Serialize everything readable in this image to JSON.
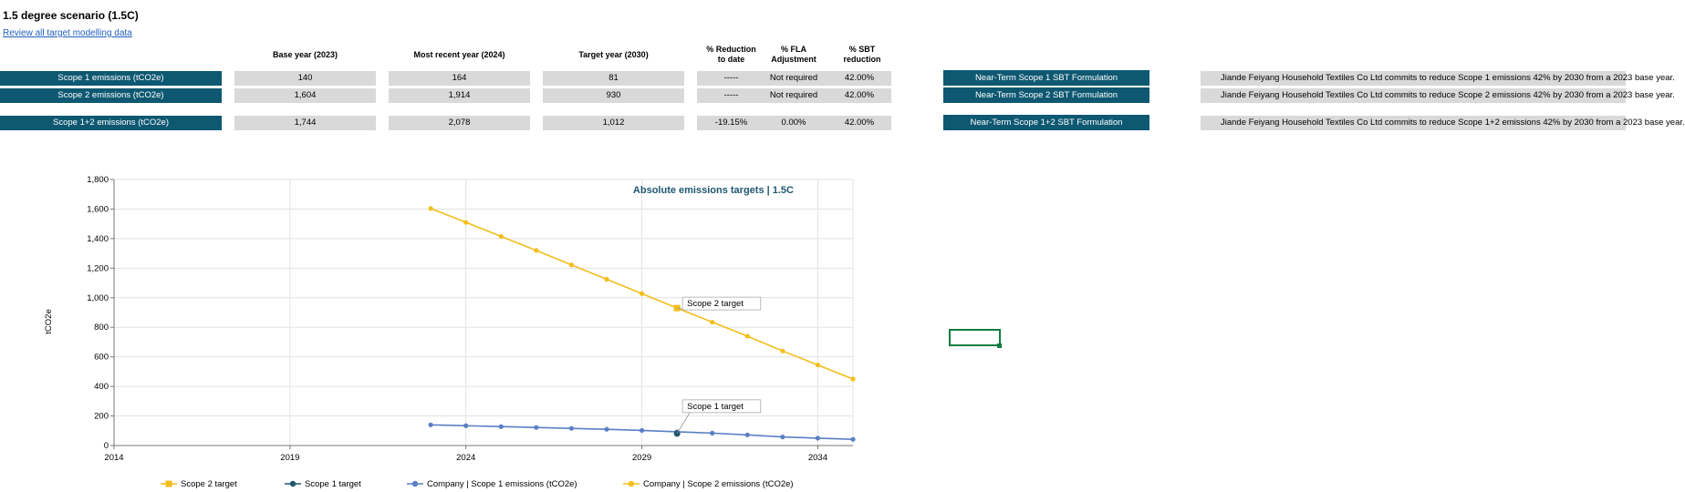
{
  "page": {
    "title": "1.5 degree scenario (1.5C)",
    "review_link": "Review all target modelling data"
  },
  "table": {
    "headers": {
      "base": "Base year (2023)",
      "recent": "Most recent year (2024)",
      "target": "Target year (2030)",
      "reduction_l1": "% Reduction",
      "reduction_l2": "to date",
      "fla_l1": "% FLA",
      "fla_l2": "Adjustment",
      "sbt_l1": "% SBT",
      "sbt_l2": "reduction"
    },
    "rows": [
      {
        "label": "Scope 1 emissions (tCO2e)",
        "base": "140",
        "recent": "164",
        "target": "81",
        "reduction": "-----",
        "fla": "Not required",
        "sbt": "42.00%",
        "formula": "Near-Term Scope 1 SBT Formulation",
        "statement": "Jiande Feiyang Household Textiles Co Ltd commits to reduce Scope 1 emissions 42% by  2030 from a 2023 base year."
      },
      {
        "label": "Scope 2 emissions (tCO2e)",
        "base": "1,604",
        "recent": "1,914",
        "target": "930",
        "reduction": "-----",
        "fla": "Not required",
        "sbt": "42.00%",
        "formula": "Near-Term Scope 2 SBT Formulation",
        "statement": "Jiande Feiyang Household Textiles Co Ltd commits to reduce Scope 2 emissions 42% by  2030 from a 2023 base year."
      },
      {
        "label": "Scope 1+2 emissions (tCO2e)",
        "base": "1,744",
        "recent": "2,078",
        "target": "1,012",
        "reduction": "-19.15%",
        "fla": "0.00%",
        "sbt": "42.00%",
        "formula": "Near-Term Scope 1+2 SBT Formulation",
        "statement": "Jiande Feiyang Household Textiles Co Ltd commits to reduce Scope 1+2 emissions 42% by  2030 from a 2023 base year."
      }
    ]
  },
  "chart_data": {
    "type": "line",
    "title": "Absolute emissions targets | 1.5C",
    "ylabel": "tCO2e",
    "xlabel": "",
    "xlim": [
      2014,
      2035
    ],
    "ylim": [
      0,
      1800
    ],
    "x_ticks": [
      "2014",
      "2019",
      "2024",
      "2029",
      "2034"
    ],
    "y_ticks": [
      "0",
      "200",
      "400",
      "600",
      "800",
      "1,000",
      "1,200",
      "1,400",
      "1,600",
      "1,800"
    ],
    "grid": true,
    "legend_position": "bottom",
    "colors": {
      "scope2": "#f2be1a",
      "scope1": "#5b7fc4",
      "scope1_target": "#1f5670"
    },
    "series": [
      {
        "name": "Scope 2 target",
        "marker": "square",
        "x": [
          2030
        ],
        "y": [
          930
        ]
      },
      {
        "name": "Scope 1 target",
        "marker": "circle",
        "x": [
          2030
        ],
        "y": [
          81
        ]
      },
      {
        "name": "Company | Scope 1 emissions (tCO2e)",
        "marker": "circle",
        "x": [
          2023,
          2024,
          2025,
          2026,
          2027,
          2028,
          2029,
          2030,
          2031,
          2032,
          2033,
          2034,
          2035
        ],
        "y": [
          140,
          134,
          128,
          122,
          116,
          110,
          102,
          93,
          84,
          72,
          58,
          50,
          42
        ]
      },
      {
        "name": "Company | Scope 2 emissions (tCO2e)",
        "marker": "circle",
        "x": [
          2023,
          2024,
          2025,
          2026,
          2027,
          2028,
          2029,
          2030,
          2031,
          2032,
          2033,
          2034,
          2035
        ],
        "y": [
          1604,
          1510,
          1415,
          1320,
          1222,
          1125,
          1028,
          930,
          835,
          740,
          640,
          545,
          450
        ]
      }
    ],
    "annotations": [
      {
        "text": "Scope 2 target"
      },
      {
        "text": "Scope 1 target"
      }
    ]
  }
}
